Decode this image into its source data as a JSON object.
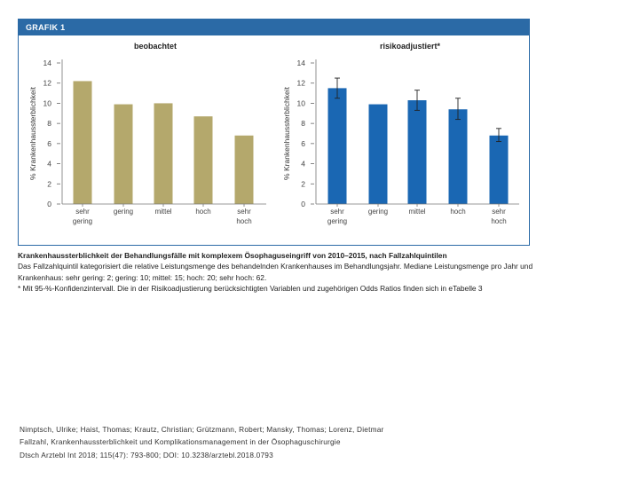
{
  "figure": {
    "header": "GRAFIK 1"
  },
  "chart_data": [
    {
      "type": "bar",
      "title": "beobachtet",
      "ylabel": "% Krankenhaussterblichkeit",
      "xlabel": "",
      "ylim": [
        0,
        14
      ],
      "yticks": [
        "0",
        "2",
        "4",
        "6",
        "8",
        "10",
        "12",
        "14"
      ],
      "categories": [
        [
          "sehr",
          "gering"
        ],
        [
          "gering"
        ],
        [
          "mittel"
        ],
        [
          "hoch"
        ],
        [
          "sehr",
          "hoch"
        ]
      ],
      "values": [
        12.2,
        9.9,
        10.0,
        8.7,
        6.8
      ],
      "color": "#b4a86c",
      "error_bars": false
    },
    {
      "type": "bar",
      "title": "risikoadjustiert*",
      "ylabel": "% Krankenhaussterblichkeit",
      "xlabel": "",
      "ylim": [
        0,
        14
      ],
      "yticks": [
        "0",
        "2",
        "4",
        "6",
        "8",
        "10",
        "12",
        "14"
      ],
      "categories": [
        [
          "sehr",
          "gering"
        ],
        [
          "gering"
        ],
        [
          "mittel"
        ],
        [
          "hoch"
        ],
        [
          "sehr",
          "hoch"
        ]
      ],
      "values": [
        11.5,
        9.9,
        10.3,
        9.4,
        6.8
      ],
      "ci_low": [
        10.5,
        9.9,
        9.3,
        8.4,
        6.2
      ],
      "ci_high": [
        12.5,
        9.9,
        11.3,
        10.5,
        7.5
      ],
      "color": "#1a67b3",
      "error_bars": true
    }
  ],
  "caption": {
    "title": "Krankenhaussterblichkeit der Behandlungsfälle mit komplexem Ösophaguseingriff von 2010–2015, nach Fallzahlquintilen",
    "text": "Das Fallzahlquintil kategorisiert die relative Leistungsmenge des behandelnden Krankenhauses im Behandlungsjahr. Mediane Leistungsmenge pro Jahr und Krankenhaus: sehr gering: 2; gering: 10; mittel: 15; hoch: 20; sehr hoch: 62.",
    "footnote": "* Mit 95-%-Konfidenzintervall. Die in der Risikoadjustierung berücksichtigten Variablen und zugehörigen Odds Ratios finden sich in eTabelle 3"
  },
  "citation": {
    "line1": "Nimptsch, Ulrike; Haist, Thomas; Krautz, Christian; Grützmann, Robert; Mansky, Thomas; Lorenz, Dietmar",
    "line2": "Fallzahl, Krankenhaussterblichkeit und Komplikationsmanagement in der Ösophaguschirurgie",
    "line3": "Dtsch Arztebl Int 2018; 115(47): 793-800; DOI: 10.3238/arztebl.2018.0793"
  }
}
